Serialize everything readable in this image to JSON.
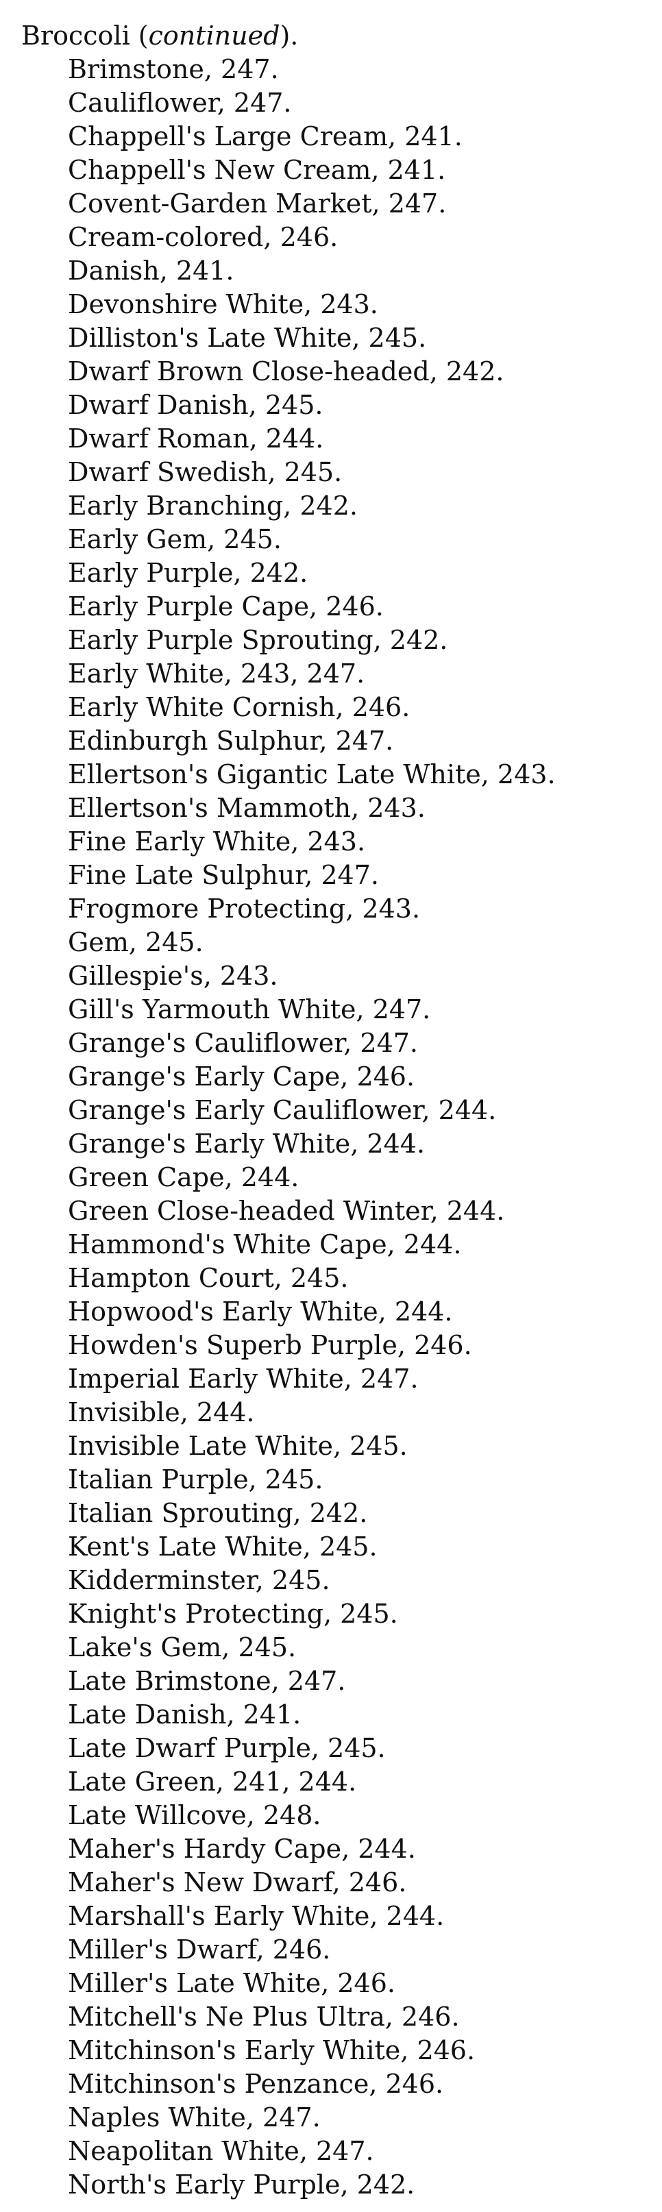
{
  "heading": {
    "term": "Broccoli",
    "open": " (",
    "qualifier": "continued",
    "close": ")."
  },
  "entries": [
    "Brimstone, 247.",
    "Cauliflower, 247.",
    "Chappell's Large Cream, 241.",
    "Chappell's New Cream, 241.",
    "Covent-Garden Market, 247.",
    "Cream-colored, 246.",
    "Danish, 241.",
    "Devonshire White, 243.",
    "Dilliston's Late White, 245.",
    "Dwarf Brown Close-headed, 242.",
    "Dwarf Danish, 245.",
    "Dwarf Roman, 244.",
    "Dwarf Swedish, 245.",
    "Early Branching, 242.",
    "Early Gem, 245.",
    "Early Purple, 242.",
    "Early Purple Cape, 246.",
    "Early Purple Sprouting, 242.",
    "Early White, 243, 247.",
    "Early White Cornish, 246.",
    "Edinburgh Sulphur, 247.",
    "Ellertson's Gigantic Late White, 243.",
    "Ellertson's Mammoth, 243.",
    "Fine Early White, 243.",
    "Fine Late Sulphur, 247.",
    "Frogmore Protecting, 243.",
    "Gem, 245.",
    "Gillespie's, 243.",
    "Gill's Yarmouth White, 247.",
    "Grange's Cauliflower, 247.",
    "Grange's Early Cape, 246.",
    "Grange's Early Cauliflower, 244.",
    "Grange's Early White, 244.",
    "Green Cape, 244.",
    "Green Close-headed Winter, 244.",
    "Hammond's White Cape, 244.",
    "Hampton Court, 245.",
    "Hopwood's Early White, 244.",
    "Howden's Superb Purple, 246.",
    "Imperial Early White, 247.",
    "Invisible, 244.",
    "Invisible Late White, 245.",
    "Italian Purple, 245.",
    "Italian Sprouting, 242.",
    "Kent's Late White, 245.",
    "Kidderminster, 245.",
    "Knight's Protecting, 245.",
    "Lake's Gem, 245.",
    "Late Brimstone, 247.",
    "Late Danish, 241.",
    "Late Dwarf Purple, 245.",
    "Late Green, 241, 244.",
    "Late Willcove, 248.",
    "Maher's Hardy Cape, 244.",
    "Maher's New Dwarf, 246.",
    "Marshall's Early White, 244.",
    "Miller's Dwarf, 246.",
    "Miller's Late White, 246.",
    "Mitchell's Ne Plus Ultra, 246.",
    "Mitchinson's Early White, 246.",
    "Mitchinson's Penzance, 246.",
    "Naples White, 247.",
    "Neapolitan White, 247.",
    "North's Early Purple, 242."
  ]
}
